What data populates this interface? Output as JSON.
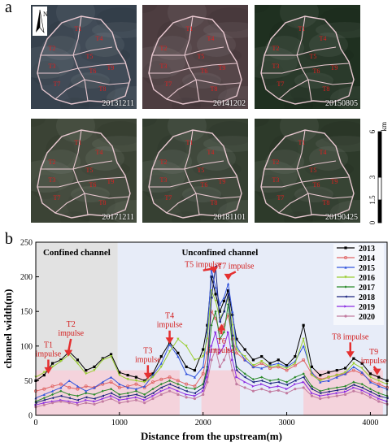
{
  "panel_a": {
    "letter": "a",
    "north_label": "N",
    "tiles": [
      {
        "date": "20131211",
        "tone": "#37424e"
      },
      {
        "date": "20141202",
        "tone": "#4d3d40"
      },
      {
        "date": "20150805",
        "tone": "#1f3020"
      },
      {
        "date": "20171211",
        "tone": "#3b4335"
      },
      {
        "date": "20181101",
        "tone": "#364032"
      },
      {
        "date": "20190425",
        "tone": "#2d3a2a"
      }
    ],
    "subcatchment_labels": [
      "T1",
      "T2",
      "T3",
      "T4",
      "T5",
      "T6",
      "T7",
      "T8",
      "T9"
    ],
    "scale": {
      "ticks": [
        "0",
        "1.5",
        "3",
        "6"
      ],
      "unit": "km"
    }
  },
  "panel_b": {
    "letter": "b"
  },
  "chart_data": {
    "type": "line",
    "xlabel": "Distance from the upstream(m)",
    "ylabel": "channel width(m)",
    "xlim": [
      0,
      4200
    ],
    "ylim": [
      0,
      250
    ],
    "xticks": [
      0,
      1000,
      2000,
      3000,
      4000
    ],
    "yticks": [
      0,
      50,
      100,
      150,
      200,
      250
    ],
    "grid": false,
    "legend_position": "top-right",
    "regions": [
      {
        "label": "Confined channel",
        "x_range": [
          0,
          980
        ],
        "color": "#e2e2e2"
      },
      {
        "label": "Unconfined channel",
        "x_range": [
          980,
          4200
        ],
        "color": "#e7ecf8"
      }
    ],
    "highlights": [
      {
        "x_range": [
          0,
          1720
        ],
        "y_max": 65,
        "color": "#f4d3dc"
      },
      {
        "x_range": [
          1980,
          2440
        ],
        "y_max": 65,
        "color": "#f4d3dc"
      },
      {
        "x_range": [
          3200,
          4150
        ],
        "y_max": 65,
        "color": "#f4d3dc"
      }
    ],
    "annotations": [
      {
        "text": [
          "T1",
          "impulse"
        ],
        "x": 150,
        "y": 60,
        "label_x": 150,
        "label_y": 98
      },
      {
        "text": [
          "T2",
          "impulse"
        ],
        "x": 390,
        "y": 85,
        "label_x": 420,
        "label_y": 128
      },
      {
        "text": [
          "T3",
          "impulse"
        ],
        "x": 1340,
        "y": 52,
        "label_x": 1340,
        "label_y": 90
      },
      {
        "text": [
          "T4",
          "impulse"
        ],
        "x": 1600,
        "y": 103,
        "label_x": 1600,
        "label_y": 140
      },
      {
        "text": [
          "T5 impulse"
        ],
        "x": 2130,
        "y": 205,
        "label_x": 2000,
        "label_y": 214
      },
      {
        "text": [
          "T6",
          "impulse"
        ],
        "x": 2220,
        "y": 132,
        "label_x": 2220,
        "label_y": 103
      },
      {
        "text": [
          "T7 impulse"
        ],
        "x": 2300,
        "y": 195,
        "label_x": 2390,
        "label_y": 212
      },
      {
        "text": [
          "T8 impulse"
        ],
        "x": 3760,
        "y": 83,
        "label_x": 3760,
        "label_y": 110
      },
      {
        "text": [
          "T9",
          "impulse"
        ],
        "x": 4080,
        "y": 58,
        "label_x": 4040,
        "label_y": 88
      }
    ],
    "x": [
      0,
      100,
      200,
      300,
      400,
      500,
      600,
      700,
      800,
      900,
      1000,
      1100,
      1200,
      1300,
      1400,
      1500,
      1600,
      1700,
      1800,
      1900,
      2000,
      2050,
      2100,
      2150,
      2200,
      2250,
      2300,
      2350,
      2400,
      2500,
      2600,
      2700,
      2800,
      2900,
      3000,
      3100,
      3200,
      3300,
      3400,
      3500,
      3600,
      3700,
      3800,
      3900,
      4000,
      4100,
      4200
    ],
    "series": [
      {
        "name": "2013",
        "color": "#000000",
        "marker": "square",
        "values": [
          50,
          58,
          75,
          80,
          92,
          80,
          65,
          70,
          82,
          88,
          62,
          58,
          55,
          50,
          60,
          85,
          105,
          90,
          70,
          65,
          95,
          130,
          200,
          175,
          150,
          165,
          180,
          145,
          110,
          95,
          80,
          85,
          75,
          80,
          72,
          85,
          130,
          70,
          58,
          62,
          65,
          68,
          82,
          75,
          60,
          55,
          50
        ]
      },
      {
        "name": "2014",
        "color": "#e06666",
        "marker": "circle",
        "values": [
          35,
          38,
          42,
          45,
          40,
          38,
          42,
          40,
          45,
          48,
          40,
          42,
          45,
          40,
          48,
          52,
          55,
          50,
          45,
          42,
          60,
          90,
          150,
          140,
          120,
          130,
          145,
          110,
          90,
          80,
          70,
          75,
          68,
          70,
          65,
          72,
          80,
          60,
          52,
          55,
          58,
          60,
          65,
          60,
          50,
          45,
          40
        ]
      },
      {
        "name": "2015",
        "color": "#3355dd",
        "marker": "triangle",
        "values": [
          25,
          30,
          35,
          40,
          50,
          42,
          35,
          40,
          48,
          55,
          45,
          40,
          38,
          42,
          58,
          75,
          102,
          85,
          60,
          55,
          70,
          120,
          210,
          185,
          160,
          170,
          190,
          150,
          100,
          80,
          70,
          68,
          72,
          75,
          70,
          78,
          100,
          62,
          48,
          50,
          55,
          60,
          70,
          62,
          48,
          42,
          38
        ]
      },
      {
        "name": "2016",
        "color": "#9acd32",
        "marker": "triangle-down",
        "values": [
          55,
          62,
          70,
          78,
          88,
          75,
          60,
          65,
          80,
          85,
          58,
          52,
          50,
          48,
          55,
          70,
          92,
          110,
          100,
          80,
          85,
          110,
          180,
          165,
          140,
          150,
          170,
          130,
          95,
          85,
          72,
          78,
          70,
          72,
          68,
          75,
          110,
          58,
          50,
          55,
          58,
          62,
          75,
          68,
          55,
          50,
          45
        ]
      },
      {
        "name": "2017",
        "color": "#2a8a2a",
        "marker": "diamond",
        "values": [
          20,
          25,
          30,
          35,
          30,
          28,
          32,
          30,
          35,
          38,
          30,
          32,
          35,
          30,
          38,
          45,
          50,
          45,
          40,
          38,
          45,
          70,
          130,
          150,
          110,
          120,
          160,
          100,
          70,
          60,
          52,
          55,
          50,
          52,
          48,
          55,
          60,
          42,
          35,
          38,
          40,
          42,
          48,
          45,
          38,
          32,
          28
        ]
      },
      {
        "name": "2018",
        "color": "#1a237e",
        "marker": "triangle-left",
        "values": [
          18,
          22,
          25,
          28,
          25,
          22,
          26,
          24,
          28,
          32,
          26,
          28,
          30,
          26,
          32,
          40,
          45,
          40,
          35,
          32,
          40,
          65,
          170,
          215,
          135,
          150,
          175,
          115,
          65,
          55,
          48,
          50,
          46,
          48,
          44,
          50,
          55,
          38,
          32,
          34,
          36,
          38,
          44,
          40,
          34,
          28,
          25
        ]
      },
      {
        "name": "2019",
        "color": "#8a2be2",
        "marker": "triangle-right",
        "values": [
          15,
          18,
          20,
          22,
          20,
          18,
          22,
          20,
          24,
          28,
          22,
          24,
          26,
          22,
          28,
          35,
          40,
          35,
          30,
          28,
          35,
          55,
          100,
          120,
          90,
          100,
          120,
          80,
          55,
          48,
          42,
          45,
          40,
          42,
          38,
          45,
          48,
          32,
          28,
          30,
          32,
          34,
          40,
          36,
          30,
          24,
          20
        ]
      },
      {
        "name": "2020",
        "color": "#c27ba0",
        "marker": "hexagon",
        "values": [
          12,
          15,
          18,
          20,
          18,
          15,
          18,
          16,
          20,
          24,
          18,
          20,
          22,
          18,
          24,
          30,
          35,
          30,
          26,
          24,
          30,
          48,
          80,
          95,
          70,
          80,
          95,
          65,
          45,
          40,
          35,
          38,
          34,
          36,
          32,
          38,
          40,
          28,
          24,
          26,
          28,
          30,
          35,
          32,
          26,
          20,
          16
        ]
      }
    ]
  }
}
